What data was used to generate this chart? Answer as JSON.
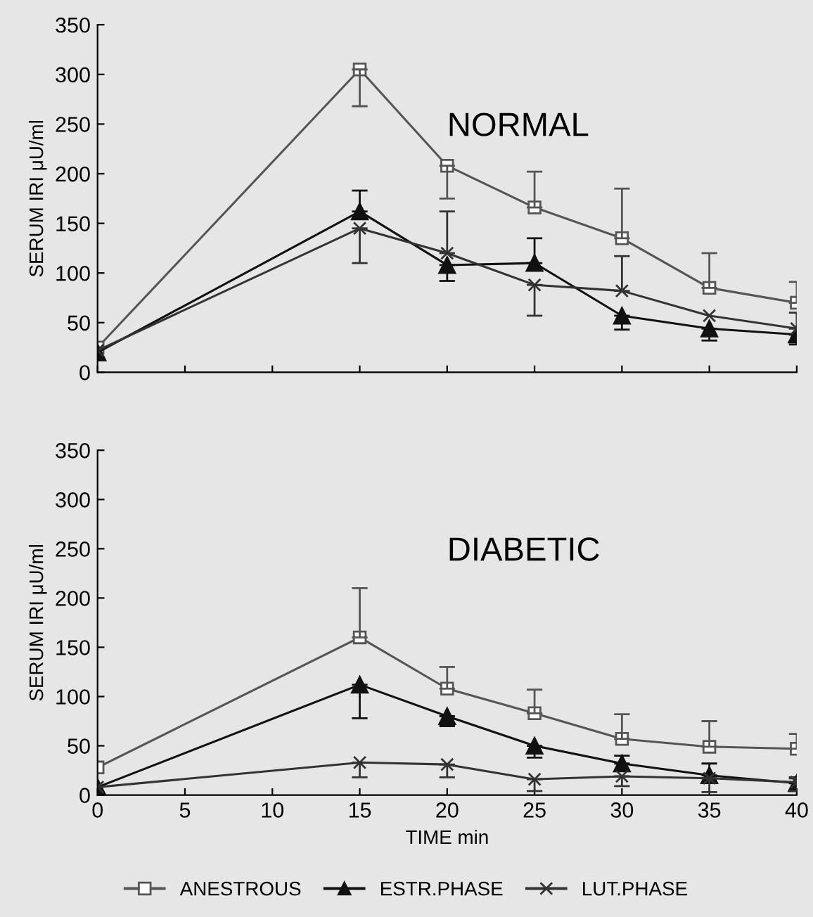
{
  "chart_data": [
    {
      "type": "line",
      "ylabel": "SERUM IRI μU/ml",
      "annotations": [
        "NORMAL"
      ],
      "x": [
        0,
        15,
        20,
        25,
        30,
        35,
        40
      ],
      "xlim": [
        0,
        40
      ],
      "xticks": [
        0,
        5,
        10,
        15,
        20,
        25,
        30,
        35,
        40
      ],
      "ylim": [
        0,
        350
      ],
      "yticks": [
        0,
        50,
        100,
        150,
        200,
        250,
        300,
        350
      ],
      "tick_labels": "y",
      "grid": false,
      "legend": "bottom",
      "series": [
        {
          "name": "ANESTROUS",
          "color": "#555555",
          "marker": "square",
          "values": [
            25,
            305,
            208,
            166,
            135,
            85,
            70
          ],
          "errors": [
            null,
            [
              268,
              305
            ],
            [
              175,
              208
            ],
            [
              166,
              202
            ],
            [
              135,
              185
            ],
            [
              85,
              120
            ],
            [
              70,
              91
            ]
          ]
        },
        {
          "name": "ESTR.PHASE",
          "color": "#111111",
          "marker": "triangle",
          "values": [
            20,
            162,
            108,
            110,
            57,
            44,
            38
          ],
          "errors": [
            null,
            [
              162,
              183
            ],
            [
              92,
              108
            ],
            [
              110,
              135
            ],
            [
              43,
              57
            ],
            [
              32,
              44
            ],
            [
              28,
              38
            ]
          ]
        },
        {
          "name": "LUT.PHASE",
          "color": "#333333",
          "marker": "cross",
          "values": [
            22,
            145,
            120,
            88,
            82,
            57,
            44
          ],
          "errors": [
            null,
            [
              110,
              145
            ],
            [
              120,
              162
            ],
            [
              57,
              88
            ],
            [
              82,
              117
            ],
            null,
            [
              44,
              60
            ]
          ]
        }
      ]
    },
    {
      "type": "line",
      "ylabel": "SERUM IRI μU/ml",
      "xlabel": "TIME min",
      "annotations": [
        "DIABETIC"
      ],
      "x": [
        0,
        15,
        20,
        25,
        30,
        35,
        40
      ],
      "xlim": [
        0,
        40
      ],
      "xticks": [
        0,
        5,
        10,
        15,
        20,
        25,
        30,
        35,
        40
      ],
      "ylim": [
        0,
        350
      ],
      "yticks": [
        0,
        50,
        100,
        150,
        200,
        250,
        300,
        350
      ],
      "grid": false,
      "series": [
        {
          "color": "#555555",
          "marker": "square",
          "values": [
            28,
            160,
            108,
            83,
            57,
            49,
            47
          ],
          "errors": [
            null,
            [
              160,
              210
            ],
            [
              108,
              130
            ],
            [
              83,
              107
            ],
            [
              57,
              82
            ],
            [
              49,
              75
            ],
            [
              47,
              62
            ]
          ]
        },
        {
          "color": "#111111",
          "marker": "triangle",
          "values": [
            8,
            112,
            80,
            50,
            32,
            20,
            12
          ],
          "errors": [
            null,
            [
              78,
              112
            ],
            [
              70,
              80
            ],
            [
              38,
              50
            ],
            [
              32,
              40
            ],
            [
              20,
              32
            ],
            [
              12,
              18
            ]
          ]
        },
        {
          "color": "#333333",
          "marker": "cross",
          "values": [
            8,
            33,
            31,
            16,
            19,
            17,
            13
          ],
          "errors": [
            null,
            [
              18,
              33
            ],
            [
              18,
              31
            ],
            [
              4,
              16
            ],
            [
              9,
              19
            ],
            [
              3,
              17
            ],
            [
              4,
              17
            ]
          ]
        }
      ]
    }
  ]
}
